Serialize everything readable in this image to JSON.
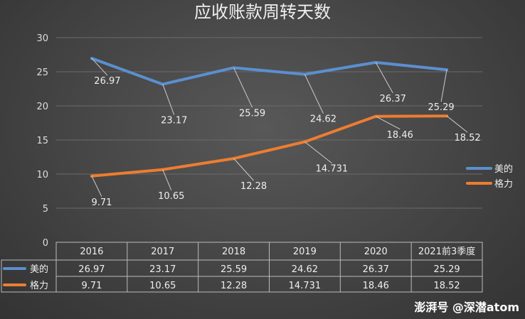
{
  "chart_data": {
    "type": "line",
    "title": "应收账款周转天数",
    "categories": [
      "2016",
      "2017",
      "2018",
      "2019",
      "2020",
      "2021前3季度"
    ],
    "series": [
      {
        "name": "美的",
        "color": "#5b8fd0",
        "values": [
          26.97,
          23.17,
          25.59,
          24.62,
          26.37,
          25.29
        ],
        "labels": [
          "26.97",
          "23.17",
          "25.59",
          "24.62",
          "26.37",
          "25.29"
        ]
      },
      {
        "name": "格力",
        "color": "#ed7d31",
        "values": [
          9.71,
          10.65,
          12.28,
          14.731,
          18.46,
          18.52
        ],
        "labels": [
          "9.71",
          "10.65",
          "12.28",
          "14.731",
          "18.46",
          "18.52"
        ]
      }
    ],
    "ylim": [
      0,
      30
    ],
    "yticks": [
      0,
      5,
      10,
      15,
      20,
      25,
      30
    ],
    "grid": true,
    "legend": "right",
    "data_table": true
  },
  "watermark": "澎湃号 @深潜atom"
}
